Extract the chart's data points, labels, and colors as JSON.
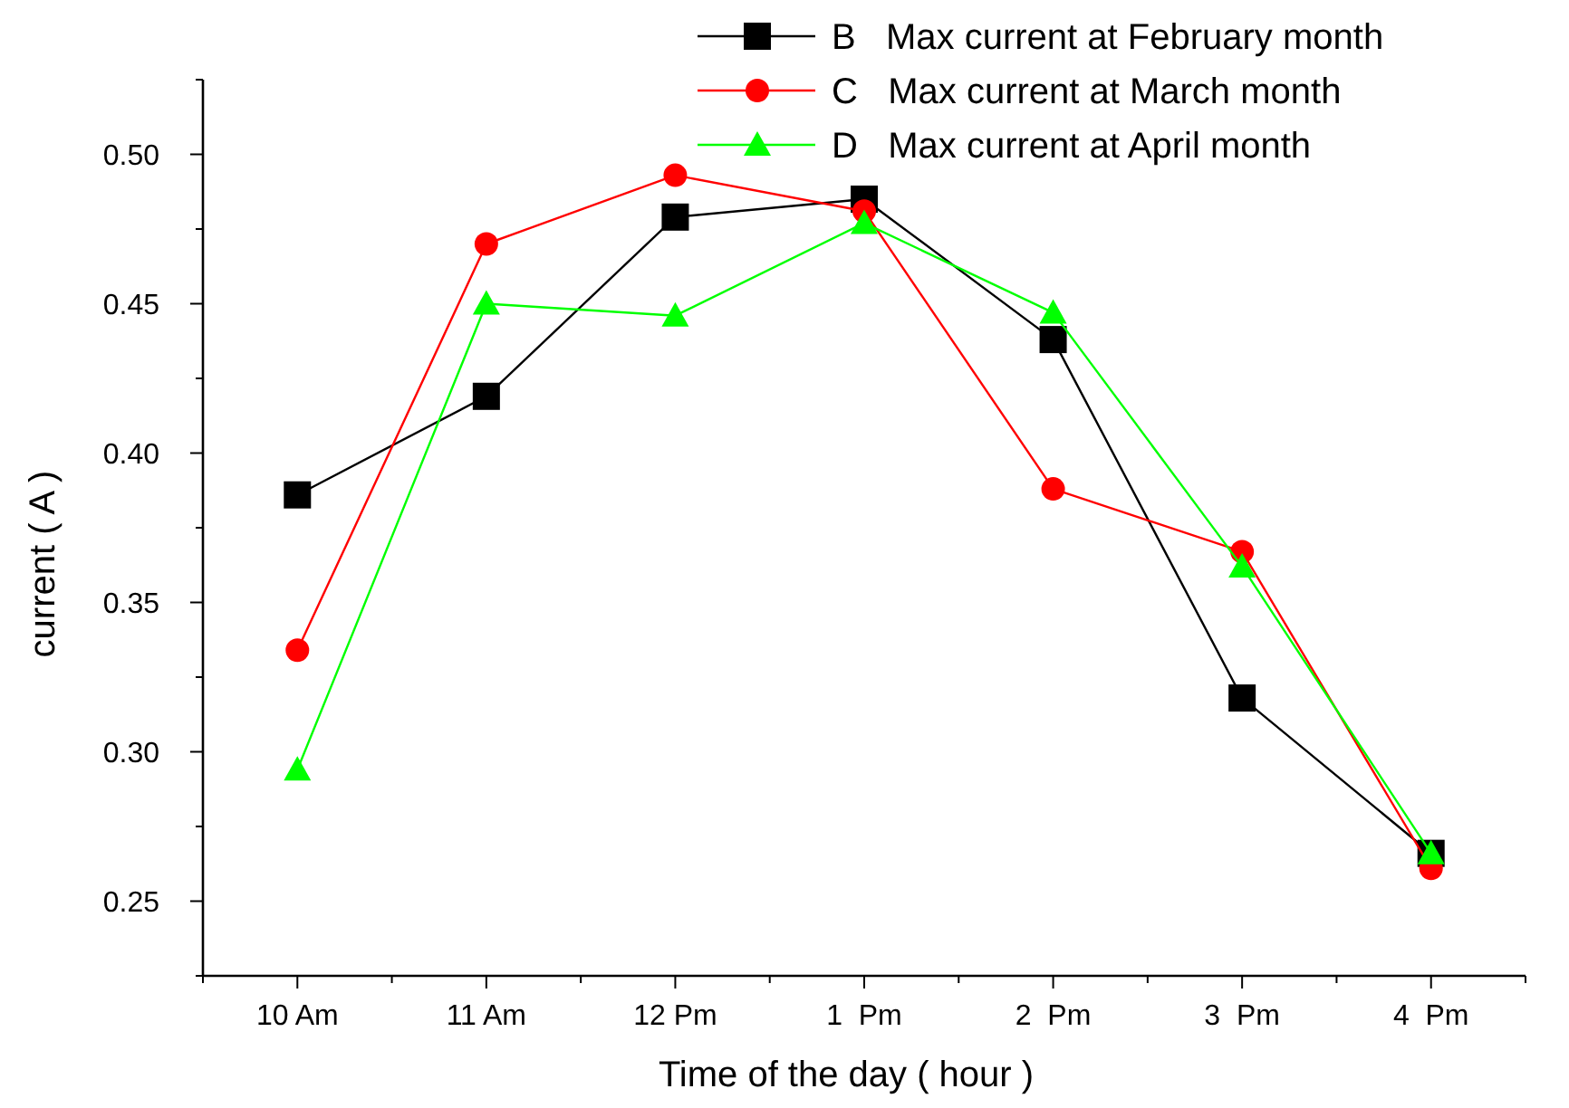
{
  "chart_data": {
    "type": "line",
    "xlabel": "Time of the day ( hour )",
    "ylabel": "current ( A )",
    "categories": [
      "10 Am",
      "11 Am",
      "12 Pm",
      "1  Pm",
      "2  Pm",
      "3  Pm",
      "4  Pm"
    ],
    "ylim": [
      0.225,
      0.525
    ],
    "yticks": [
      {
        "value": 0.225,
        "label": null
      },
      {
        "value": 0.25,
        "label": "0.25"
      },
      {
        "value": 0.275,
        "label": null
      },
      {
        "value": 0.3,
        "label": "0.30"
      },
      {
        "value": 0.325,
        "label": null
      },
      {
        "value": 0.35,
        "label": "0.35"
      },
      {
        "value": 0.375,
        "label": null
      },
      {
        "value": 0.4,
        "label": "0.40"
      },
      {
        "value": 0.425,
        "label": null
      },
      {
        "value": 0.45,
        "label": "0.45"
      },
      {
        "value": 0.475,
        "label": null
      },
      {
        "value": 0.5,
        "label": "0.50"
      },
      {
        "value": 0.525,
        "label": null
      }
    ],
    "grid": false,
    "legend": "top right",
    "line_style": "solid",
    "series": [
      {
        "name": "B   Max current at February month",
        "color": "#000000",
        "marker": "square",
        "values": [
          0.386,
          0.419,
          0.479,
          0.485,
          0.438,
          0.318,
          0.266
        ]
      },
      {
        "name": "C   Max current at March month",
        "color": "#ff0000",
        "marker": "circle",
        "values": [
          0.334,
          0.47,
          0.493,
          0.481,
          0.388,
          0.367,
          0.261
        ]
      },
      {
        "name": "D   Max current at April month",
        "color": "#00ff00",
        "marker": "triangle",
        "values": [
          0.294,
          0.45,
          0.446,
          0.477,
          0.447,
          0.362,
          0.266
        ]
      }
    ]
  }
}
